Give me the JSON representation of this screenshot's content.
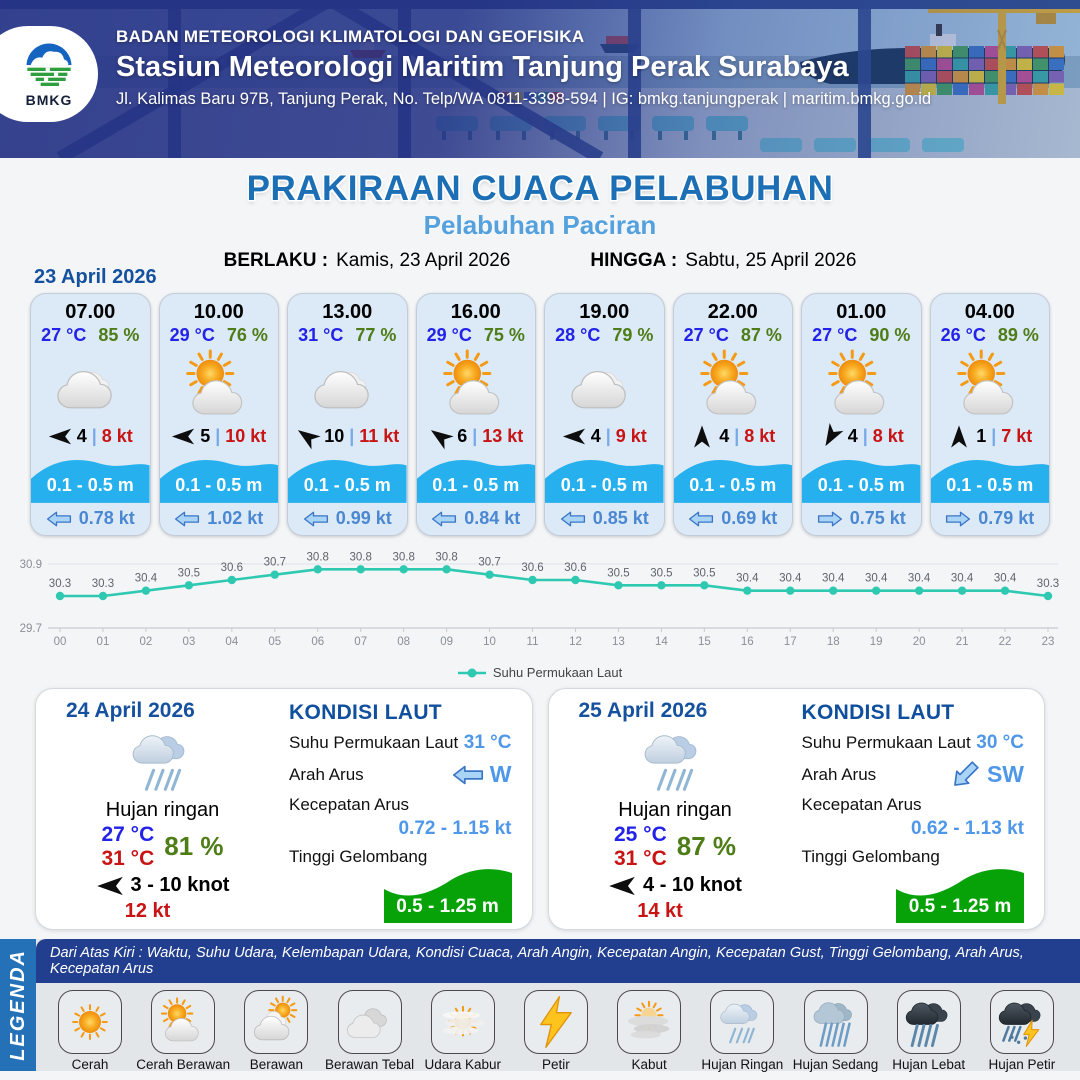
{
  "header": {
    "org": "BADAN METEOROLOGI KLIMATOLOGI DAN GEOFISIKA",
    "station": "Stasiun Meteorologi Maritim Tanjung Perak Surabaya",
    "address": "Jl. Kalimas Baru 97B, Tanjung Perak, No. Telp/WA 0811-3398-594 | IG: bmkg.tanjungperak | maritim.bmkg.go.id",
    "logo_text": "BMKG"
  },
  "title": {
    "main": "PRAKIRAAN CUACA PELABUHAN",
    "sub": "Pelabuhan Paciran"
  },
  "validity": {
    "from_label": "BERLAKU :",
    "from_value": "Kamis, 23 April 2026",
    "to_label": "HINGGA :",
    "to_value": "Sabtu, 25 April 2026"
  },
  "shared": {
    "pipe": "|"
  },
  "forecast_day1": {
    "date": "23 April 2026",
    "cards": [
      {
        "time": "07.00",
        "temp": "27 °C",
        "humidity": "85 %",
        "icon": "berawan",
        "wind_dir_deg": 0,
        "wind_speed": "4",
        "gust": "8 kt",
        "wave": "0.1 - 0.5 m",
        "current_dir_deg": 0,
        "current": "0.78 kt"
      },
      {
        "time": "10.00",
        "temp": "29 °C",
        "humidity": "76 %",
        "icon": "cerah-berawan",
        "wind_dir_deg": 0,
        "wind_speed": "5",
        "gust": "10 kt",
        "wave": "0.1 - 0.5 m",
        "current_dir_deg": 0,
        "current": "1.02 kt"
      },
      {
        "time": "13.00",
        "temp": "31 °C",
        "humidity": "77 %",
        "icon": "berawan",
        "wind_dir_deg": 35,
        "wind_speed": "10",
        "gust": "11 kt",
        "wave": "0.1 - 0.5 m",
        "current_dir_deg": 0,
        "current": "0.99 kt"
      },
      {
        "time": "16.00",
        "temp": "29 °C",
        "humidity": "75 %",
        "icon": "cerah-berawan",
        "wind_dir_deg": 35,
        "wind_speed": "6",
        "gust": "13 kt",
        "wave": "0.1 - 0.5 m",
        "current_dir_deg": 0,
        "current": "0.84 kt"
      },
      {
        "time": "19.00",
        "temp": "28 °C",
        "humidity": "79 %",
        "icon": "berawan",
        "wind_dir_deg": 0,
        "wind_speed": "4",
        "gust": "9 kt",
        "wave": "0.1 - 0.5 m",
        "current_dir_deg": 0,
        "current": "0.85 kt"
      },
      {
        "time": "22.00",
        "temp": "27 °C",
        "humidity": "87 %",
        "icon": "cerah-berawan",
        "wind_dir_deg": 90,
        "wind_speed": "4",
        "gust": "8 kt",
        "wave": "0.1 - 0.5 m",
        "current_dir_deg": 0,
        "current": "0.69 kt"
      },
      {
        "time": "01.00",
        "temp": "27 °C",
        "humidity": "90 %",
        "icon": "cerah-berawan",
        "wind_dir_deg": -60,
        "wind_speed": "4",
        "gust": "8 kt",
        "wave": "0.1 - 0.5 m",
        "current_dir_deg": 180,
        "current": "0.75 kt"
      },
      {
        "time": "04.00",
        "temp": "26 °C",
        "humidity": "89 %",
        "icon": "cerah-berawan",
        "wind_dir_deg": 90,
        "wind_speed": "1",
        "gust": "7 kt",
        "wave": "0.1 - 0.5 m",
        "current_dir_deg": 180,
        "current": "0.79 kt"
      }
    ]
  },
  "chart_data": {
    "type": "line",
    "title": "",
    "xlabel": "",
    "ylabel": "",
    "x": [
      "00",
      "01",
      "02",
      "03",
      "04",
      "05",
      "06",
      "07",
      "08",
      "09",
      "10",
      "11",
      "12",
      "13",
      "14",
      "15",
      "16",
      "17",
      "18",
      "19",
      "20",
      "21",
      "22",
      "23"
    ],
    "series": [
      {
        "name": "Suhu Permukaan Laut",
        "values": [
          30.3,
          30.3,
          30.4,
          30.5,
          30.6,
          30.7,
          30.8,
          30.8,
          30.8,
          30.8,
          30.7,
          30.6,
          30.6,
          30.5,
          30.5,
          30.5,
          30.4,
          30.4,
          30.4,
          30.4,
          30.4,
          30.4,
          30.4,
          30.3
        ]
      }
    ],
    "ylim": [
      29.7,
      30.9
    ],
    "ytick_labels": [
      "30.9",
      "29.7"
    ],
    "line_color": "#2fc9b2",
    "legend_position": "bottom",
    "grid": "minimal"
  },
  "day_cards": [
    {
      "date": "24 April 2026",
      "icon": "hujan-ringan",
      "condition": "Hujan ringan",
      "temp_min": "27 °C",
      "temp_max": "31 °C",
      "humidity": "81 %",
      "wind_dir_deg": 0,
      "wind_range": "3 - 10 knot",
      "gust": "12 kt",
      "sea": {
        "heading": "KONDISI LAUT",
        "sst_label": "Suhu Permukaan Laut",
        "sst": "31 °C",
        "current_dir_label": "Arah Arus",
        "current_dir": "W",
        "current_dir_deg": 0,
        "current_speed_label": "Kecepatan Arus",
        "current_speed": "0.72 - 1.15 kt",
        "wave_label": "Tinggi Gelombang",
        "wave": "0.5 - 1.25 m"
      }
    },
    {
      "date": "25 April 2026",
      "icon": "hujan-ringan",
      "condition": "Hujan ringan",
      "temp_min": "25 °C",
      "temp_max": "31 °C",
      "humidity": "87 %",
      "wind_dir_deg": 0,
      "wind_range": "4 - 10 knot",
      "gust": "14 kt",
      "sea": {
        "heading": "KONDISI LAUT",
        "sst_label": "Suhu Permukaan Laut",
        "sst": "30 °C",
        "current_dir_label": "Arah Arus",
        "current_dir": "SW",
        "current_dir_deg": -45,
        "current_speed_label": "Kecepatan Arus",
        "current_speed": "0.62 - 1.13 kt",
        "wave_label": "Tinggi Gelombang",
        "wave": "0.5 - 1.25 m"
      }
    }
  ],
  "legend": {
    "title": "LEGENDA",
    "caption": "Dari Atas Kiri : Waktu, Suhu Udara, Kelembapan Udara, Kondisi Cuaca, Arah Angin, Kecepatan Angin, Kecepatan Gust, Tinggi Gelombang, Arah Arus, Kecepatan Arus",
    "items": [
      {
        "icon": "cerah",
        "label": "Cerah"
      },
      {
        "icon": "cerah-berawan",
        "label": "Cerah Berawan"
      },
      {
        "icon": "berawan-sun",
        "label": "Berawan"
      },
      {
        "icon": "berawan-tebal",
        "label": "Berawan Tebal"
      },
      {
        "icon": "udara-kabur",
        "label": "Udara Kabur"
      },
      {
        "icon": "petir",
        "label": "Petir"
      },
      {
        "icon": "kabut",
        "label": "Kabut"
      },
      {
        "icon": "hujan-ringan",
        "label": "Hujan Ringan"
      },
      {
        "icon": "hujan-sedang",
        "label": "Hujan Sedang"
      },
      {
        "icon": "hujan-lebat",
        "label": "Hujan Lebat"
      },
      {
        "icon": "hujan-petir",
        "label": "Hujan Petir"
      }
    ]
  },
  "colors": {
    "title_blue": "#1d6fb5",
    "subtitle_blue": "#54a1de",
    "date_blue": "#15519f",
    "temp_blue": "#2222e8",
    "humidity_green": "#4e7c17",
    "gust_red": "#c81414",
    "wave_blue": "#27b0ee",
    "current_blue": "#4b88d2",
    "sea_value_blue": "#4f97e8",
    "green_wave": "#07a207",
    "header_navy": "#253185",
    "legend_navy": "#223e8e",
    "legend_strip_blue": "#2471b8",
    "chart_teal": "#2fc9b2"
  }
}
